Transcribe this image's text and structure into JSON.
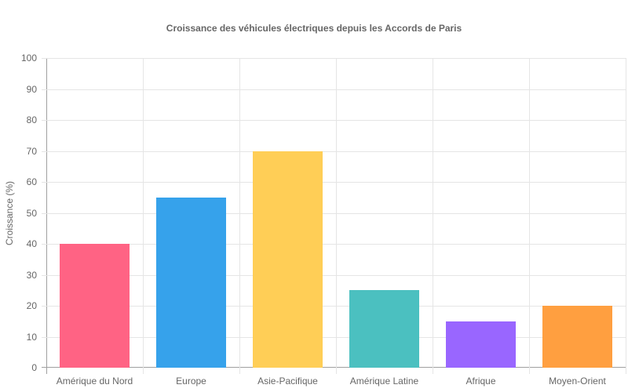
{
  "chart_data": {
    "type": "bar",
    "title": "Croissance des véhicules électriques depuis les Accords de Paris",
    "xlabel": "",
    "ylabel": "Croissance (%)",
    "ylim": [
      0,
      100
    ],
    "yticks": [
      0,
      10,
      20,
      30,
      40,
      50,
      60,
      70,
      80,
      90,
      100
    ],
    "grid": true,
    "legend": null,
    "categories": [
      "Amérique du Nord",
      "Europe",
      "Asie-Pacifique",
      "Amérique Latine",
      "Afrique",
      "Moyen-Orient"
    ],
    "values": [
      40,
      55,
      70,
      25,
      15,
      20
    ],
    "colors": [
      "#ff6384",
      "#36a2eb",
      "#ffce56",
      "#4bc0c0",
      "#9966ff",
      "#ff9f40"
    ]
  },
  "ytick_labels": [
    "0",
    "10",
    "20",
    "30",
    "40",
    "50",
    "60",
    "70",
    "80",
    "90",
    "100"
  ]
}
